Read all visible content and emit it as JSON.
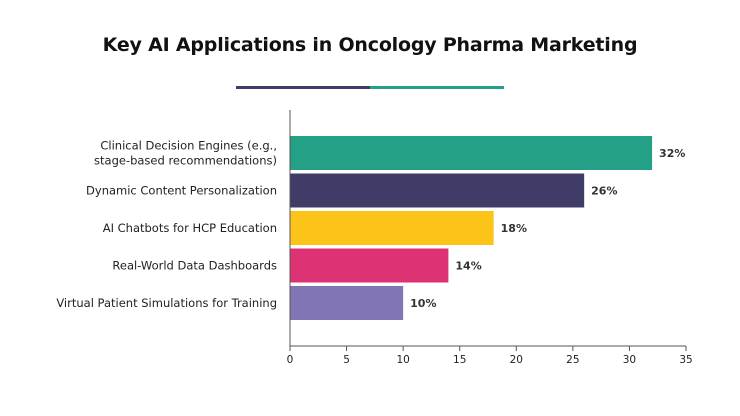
{
  "chart_data": {
    "type": "bar",
    "orientation": "horizontal",
    "title": "Key AI Applications in Oncology Pharma Marketing",
    "categories": [
      [
        "Clinical Decision Engines (e.g.,",
        "stage-based recommendations)"
      ],
      [
        "Dynamic Content Personalization"
      ],
      [
        "AI Chatbots for HCP Education"
      ],
      [
        "Real-World Data Dashboards"
      ],
      [
        "Virtual Patient Simulations for Training"
      ]
    ],
    "values": [
      32,
      26,
      18,
      14,
      10
    ],
    "value_labels": [
      "32%",
      "26%",
      "18%",
      "14%",
      "10%"
    ],
    "colors": [
      "#23a086",
      "#3f3d67",
      "#fcc419",
      "#dd3274",
      "#8175b5"
    ],
    "xlim": [
      0,
      35
    ],
    "x_ticks": [
      0,
      5,
      10,
      15,
      20,
      25,
      30,
      35
    ],
    "xlabel": "",
    "ylabel": "",
    "grid": false,
    "legend": "none"
  },
  "decor": {
    "underline_colors": [
      "#3f3d67",
      "#23a086"
    ]
  }
}
